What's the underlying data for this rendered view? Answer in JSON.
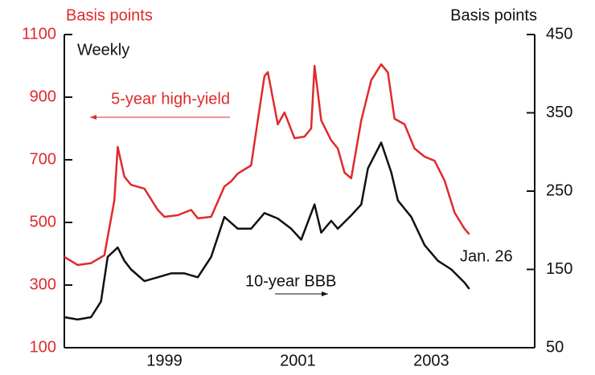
{
  "chart_data": {
    "type": "line",
    "y_label": "Basis points",
    "y2_label": "Basis points",
    "annotations": {
      "frequency": "Weekly",
      "high_yield": "5-year high-yield",
      "bbb": "10-year BBB",
      "end_date": "Jan. 26"
    },
    "xlim": [
      1998.0,
      2005.05
    ],
    "xticks": [
      {
        "value": 1999.5,
        "label": "1999"
      },
      {
        "value": 2001.5,
        "label": "2001"
      },
      {
        "value": 2003.5,
        "label": "2003"
      }
    ],
    "ylim": [
      100,
      1100
    ],
    "yticks": [
      100,
      300,
      500,
      700,
      900,
      1100
    ],
    "y2lim": [
      50,
      450
    ],
    "y2ticks": [
      50,
      150,
      250,
      350,
      450
    ],
    "series": [
      {
        "name": "5-year high-yield",
        "color": "#e02a2a",
        "axis": "y",
        "x": [
          1998.0,
          1998.2,
          1998.4,
          1998.6,
          1998.75,
          1998.8,
          1998.9,
          1999.0,
          1999.2,
          1999.4,
          1999.5,
          1999.7,
          1999.9,
          2000.0,
          2000.2,
          2000.4,
          2000.5,
          2000.6,
          2000.8,
          2000.9,
          2001.0,
          2001.05,
          2001.2,
          2001.3,
          2001.45,
          2001.6,
          2001.7,
          2001.75,
          2001.85,
          2002.0,
          2002.1,
          2002.2,
          2002.3,
          2002.45,
          2002.6,
          2002.75,
          2002.85,
          2002.95,
          2003.1,
          2003.25,
          2003.4,
          2003.55,
          2003.7,
          2003.85,
          2004.0,
          2004.07
        ],
        "values": [
          390,
          364,
          370,
          395,
          570,
          741,
          646,
          620,
          608,
          540,
          518,
          523,
          540,
          513,
          518,
          615,
          631,
          656,
          682,
          826,
          967,
          980,
          813,
          851,
          769,
          774,
          800,
          1000,
          826,
          762,
          736,
          659,
          641,
          826,
          954,
          1005,
          979,
          831,
          813,
          736,
          710,
          697,
          633,
          531,
          479,
          462
        ]
      },
      {
        "name": "10-year BBB",
        "color": "#111111",
        "axis": "y2",
        "x": [
          1998.0,
          1998.2,
          1998.4,
          1998.55,
          1998.65,
          1998.8,
          1998.9,
          1999.0,
          1999.2,
          1999.4,
          1999.6,
          1999.8,
          2000.0,
          2000.2,
          2000.4,
          2000.6,
          2000.8,
          2001.0,
          2001.2,
          2001.4,
          2001.55,
          2001.75,
          2001.85,
          2002.0,
          2002.1,
          2002.3,
          2002.45,
          2002.55,
          2002.75,
          2002.9,
          2003.0,
          2003.2,
          2003.4,
          2003.6,
          2003.8,
          2004.0,
          2004.07
        ],
        "values": [
          89,
          86,
          89,
          109,
          166,
          178,
          161,
          150,
          135,
          140,
          145,
          145,
          140,
          166,
          217,
          202,
          202,
          222,
          215,
          202,
          188,
          233,
          197,
          212,
          202,
          219,
          233,
          279,
          312,
          274,
          238,
          217,
          181,
          161,
          150,
          133,
          125
        ]
      }
    ]
  }
}
